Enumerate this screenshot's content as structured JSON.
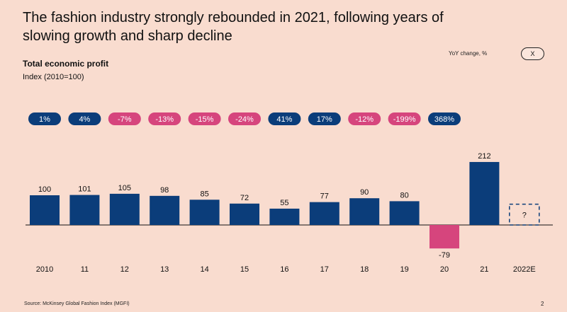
{
  "header": {
    "title": "The fashion industry strongly rebounded in 2021, following years of slowing growth and sharp decline",
    "subtitle": "Total economic profit",
    "index_label": "Index (2010=100)",
    "yoy_label": "YoY change, %",
    "close_label": "X"
  },
  "footer": {
    "source": "Source: McKinsey Global Fashion Index (MGFI)",
    "page_number": "2"
  },
  "colors": {
    "background": "#f9dccf",
    "bar": "#0b3d7a",
    "negative": "#d6457d",
    "pill_positive": "#0b3d7a",
    "pill_negative": "#d6457d"
  },
  "chart_data": {
    "type": "bar",
    "title": "Total economic profit",
    "ylabel": "Index (2010=100)",
    "xlabel": "",
    "categories": [
      "2010",
      "11",
      "12",
      "13",
      "14",
      "15",
      "16",
      "17",
      "18",
      "19",
      "20",
      "21",
      "2022E"
    ],
    "values": [
      100,
      101,
      105,
      98,
      85,
      72,
      55,
      77,
      90,
      80,
      -79,
      212,
      null
    ],
    "labels": [
      "100",
      "101",
      "105",
      "98",
      "85",
      "72",
      "55",
      "77",
      "90",
      "80",
      "-79",
      "212",
      "?"
    ],
    "yoy_change": [
      "1%",
      "4%",
      "-7%",
      "-13%",
      "-15%",
      "-24%",
      "41%",
      "17%",
      "-12%",
      "-199%",
      "368%"
    ],
    "estimate_placeholder_value": 70,
    "ylim": [
      -90,
      220
    ]
  }
}
